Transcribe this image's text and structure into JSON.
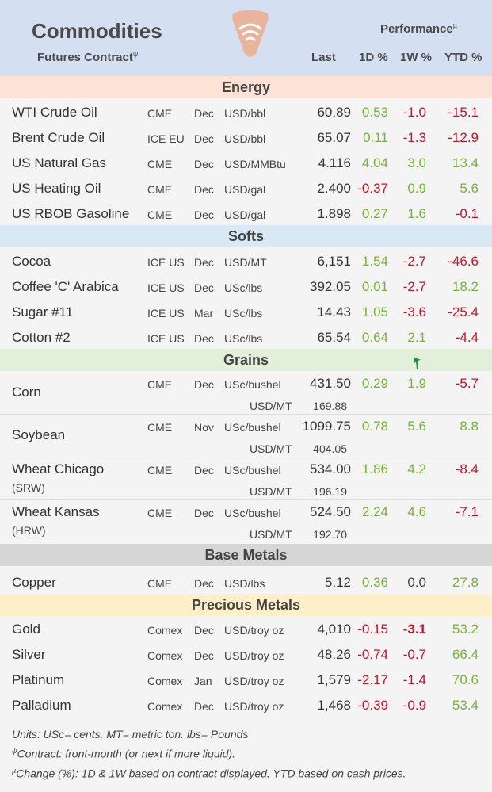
{
  "header": {
    "title": "Commodities",
    "subtitle": "Futures Contract",
    "subtitle_mark": "ψ",
    "performance": "Performance",
    "performance_mark": "µ",
    "col_last": "Last",
    "col_1d": "1D %",
    "col_1w": "1W %",
    "col_ytd": "YTD %"
  },
  "colors": {
    "positive": "#7ab040",
    "negative": "#c0152b",
    "logo": "#e8b49b"
  },
  "sections": {
    "energy": {
      "title": "Energy",
      "color": "#fde3d6",
      "rows": [
        {
          "name": "WTI Crude Oil",
          "exch": "CME",
          "month": "Dec",
          "unit": "USD/bbl",
          "last": "60.89",
          "d1": "0.53",
          "w1": "-1.0",
          "ytd": "-15.1"
        },
        {
          "name": "Brent Crude Oil",
          "exch": "ICE EU",
          "month": "Dec",
          "unit": "USD/bbl",
          "last": "65.07",
          "d1": "0.11",
          "w1": "-1.3",
          "ytd": "-12.9"
        },
        {
          "name": "US Natural Gas",
          "exch": "CME",
          "month": "Dec",
          "unit": "USD/MMBtu",
          "last": "4.116",
          "d1": "4.04",
          "w1": "3.0",
          "ytd": "13.4"
        },
        {
          "name": "US Heating Oil",
          "exch": "CME",
          "month": "Dec",
          "unit": "USD/gal",
          "last": "2.400",
          "d1": "-0.37",
          "w1": "0.9",
          "ytd": "5.6"
        },
        {
          "name": "US RBOB Gasoline",
          "exch": "CME",
          "month": "Dec",
          "unit": "USD/gal",
          "last": "1.898",
          "d1": "0.27",
          "w1": "1.6",
          "ytd": "-0.1"
        }
      ]
    },
    "softs": {
      "title": "Softs",
      "color": "#d9e8f5",
      "rows": [
        {
          "name": "Cocoa",
          "exch": "ICE US",
          "month": "Dec",
          "unit": "USD/MT",
          "last": "6,151",
          "d1": "1.54",
          "w1": "-2.7",
          "ytd": "-46.6"
        },
        {
          "name": "Coffee 'C' Arabica",
          "exch": "ICE US",
          "month": "Dec",
          "unit": "USc/lbs",
          "last": "392.05",
          "d1": "0.01",
          "w1": "-2.7",
          "ytd": "18.2"
        },
        {
          "name": "Sugar #11",
          "exch": "ICE US",
          "month": "Mar",
          "unit": "USc/lbs",
          "last": "14.43",
          "d1": "1.05",
          "w1": "-3.6",
          "ytd": "-25.4"
        },
        {
          "name": "Cotton #2",
          "exch": "ICE US",
          "month": "Dec",
          "unit": "USc/lbs",
          "last": "65.54",
          "d1": "0.64",
          "w1": "2.1",
          "ytd": "-4.4"
        }
      ]
    },
    "grains": {
      "title": "Grains",
      "color": "#e2f0d9",
      "rows": [
        {
          "name": "Corn",
          "sub": "",
          "exch": "CME",
          "month": "Dec",
          "unit": "USc/bushel",
          "last": "431.50",
          "d1": "0.29",
          "w1": "1.9",
          "ytd": "-5.7",
          "mt_unit": "USD/MT",
          "mt_value": "169.88"
        },
        {
          "name": "Soybean",
          "sub": "",
          "exch": "CME",
          "month": "Nov",
          "unit": "USc/bushel",
          "last": "1099.75",
          "d1": "0.78",
          "w1": "5.6",
          "ytd": "8.8",
          "mt_unit": "USD/MT",
          "mt_value": "404.05"
        },
        {
          "name": "Wheat Chicago",
          "sub": "(SRW)",
          "exch": "CME",
          "month": "Dec",
          "unit": "USc/bushel",
          "last": "534.00",
          "d1": "1.86",
          "w1": "4.2",
          "ytd": "-8.4",
          "mt_unit": "USD/MT",
          "mt_value": "196.19"
        },
        {
          "name": "Wheat Kansas",
          "sub": "(HRW)",
          "exch": "CME",
          "month": "Dec",
          "unit": "USc/bushel",
          "last": "524.50",
          "d1": "2.24",
          "w1": "4.6",
          "ytd": "-7.1",
          "mt_unit": "USD/MT",
          "mt_value": "192.70"
        }
      ]
    },
    "base_metals": {
      "title": "Base Metals",
      "color": "#d6d6d6",
      "rows": [
        {
          "name": "Copper",
          "exch": "CME",
          "month": "Dec",
          "unit": "USD/lbs",
          "last": "5.12",
          "d1": "0.36",
          "w1": "0.0",
          "ytd": "27.8"
        }
      ]
    },
    "precious_metals": {
      "title": "Precious Metals",
      "color": "#fdefc8",
      "rows": [
        {
          "name": "Gold",
          "exch": "Comex",
          "month": "Dec",
          "unit": "USD/troy oz",
          "last": "4,010",
          "d1": "-0.15",
          "w1": "-3.1",
          "ytd": "53.2"
        },
        {
          "name": "Silver",
          "exch": "Comex",
          "month": "Dec",
          "unit": "USD/troy oz",
          "last": "48.26",
          "d1": "-0.74",
          "w1": "-0.7",
          "ytd": "66.4"
        },
        {
          "name": "Platinum",
          "exch": "Comex",
          "month": "Jan",
          "unit": "USD/troy oz",
          "last": "1,579",
          "d1": "-2.17",
          "w1": "-1.4",
          "ytd": "70.6"
        },
        {
          "name": "Palladium",
          "exch": "Comex",
          "month": "Dec",
          "unit": "USD/troy oz",
          "last": "1,468",
          "d1": "-0.39",
          "w1": "-0.9",
          "ytd": "53.4"
        }
      ]
    }
  },
  "notes": {
    "line1": "Units: USc= cents.  MT= metric ton.  lbs= Pounds",
    "line2_mark": "ψ",
    "line2": "Contract: front-month (or next if more liquid).",
    "line3_mark": "µ",
    "line3": "Change (%): 1D & 1W based on contract displayed. YTD based on cash prices."
  }
}
